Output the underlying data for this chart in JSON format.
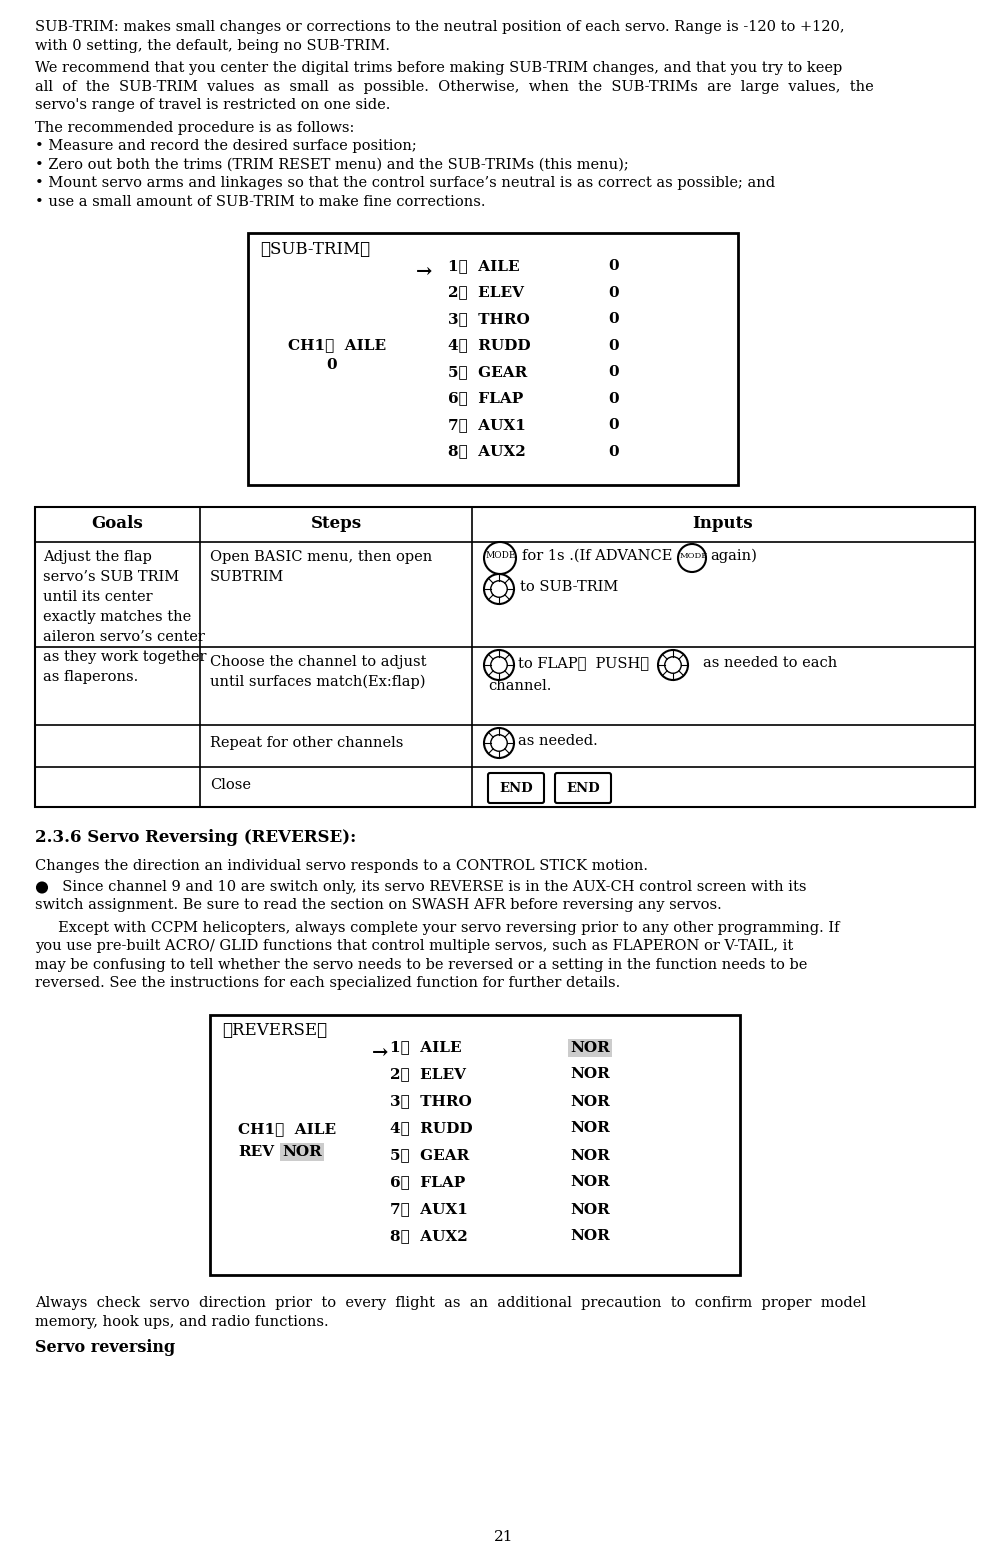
{
  "page_number": "21",
  "bg_color": "#ffffff",
  "para1_line1": "SUB-TRIM: makes small changes or corrections to the neutral position of each servo. Range is -120 to +120,",
  "para1_line2": "with 0 setting, the default, being no SUB-TRIM.",
  "para2_line1": "We recommend that you center the digital trims before making SUB-TRIM changes, and that you try to keep",
  "para2_line2": "all  of  the  SUB-TRIM  values  as  small  as  possible.  Otherwise,  when  the  SUB-TRIMs  are  large  values,  the",
  "para2_line3": "servo's range of travel is restricted on one side.",
  "para3": "The recommended procedure is as follows:",
  "bullet1": "• Measure and record the desired surface position;",
  "bullet2": "• Zero out both the trims (TRIM RESET menu) and the SUB-TRIMs (this menu);",
  "bullet3": "• Mount servo arms and linkages so that the control surface’s neutral is as correct as possible; and",
  "bullet4": "• use a small amount of SUB-TRIM to make fine corrections.",
  "subtrim_box_title": "【SUB-TRIM】",
  "subtrim_channels": [
    "1：  AILE",
    "2：  ELEV",
    "3：  THRO",
    "4：  RUDD",
    "5：  GEAR",
    "6：  FLAP",
    "7：  AUX1",
    "8：  AUX2"
  ],
  "subtrim_values": [
    "0",
    "0",
    "0",
    "0",
    "0",
    "0",
    "0",
    "0"
  ],
  "subtrim_ch_label1": "CH1：  AILE",
  "subtrim_ch_label2": "0",
  "table_goals": "Adjust the flap\nservo’s SUB TRIM\nuntil its center\nexactly matches the\naileron servo’s center\nas they work together\nas flaperons.",
  "section_title": "2.3.6 Servo Reversing (REVERSE):",
  "rev_para1": "Changes the direction an individual servo responds to a CONTROL STICK motion.",
  "rev_para2a": "  Since channel 9 and 10 are switch only, its servo REVERSE is in the AUX-CH control screen with its",
  "rev_para2b": "switch assignment. Be sure to read the section on SWASH AFR before reversing any servos.",
  "rev_para3a": "     Except with CCPM helicopters, always complete your servo reversing prior to any other programming. If",
  "rev_para3b": "you use pre-built ACRO/ GLID functions that control multiple servos, such as FLAPERON or V-TAIL, it",
  "rev_para3c": "may be confusing to tell whether the servo needs to be reversed or a setting in the function needs to be",
  "rev_para3d": "reversed. See the instructions for each specialized function for further details.",
  "reverse_box_title": "【REVERSE】",
  "reverse_channels": [
    "1：  AILE",
    "2：  ELEV",
    "3：  THRO",
    "4：  RUDD",
    "5：  GEAR",
    "6：  FLAP",
    "7：  AUX1",
    "8：  AUX2"
  ],
  "reverse_values": [
    "NOR",
    "NOR",
    "NOR",
    "NOR",
    "NOR",
    "NOR",
    "NOR",
    "NOR"
  ],
  "reverse_ch1": "CH1：  AILE",
  "reverse_ch2": "REV   NOR",
  "footer1a": "Always  check  servo  direction  prior  to  every  flight  as  an  additional  precaution  to  confirm  proper  model",
  "footer1b": "memory, hook ups, and radio functions.",
  "footer_bold": "Servo reversing"
}
